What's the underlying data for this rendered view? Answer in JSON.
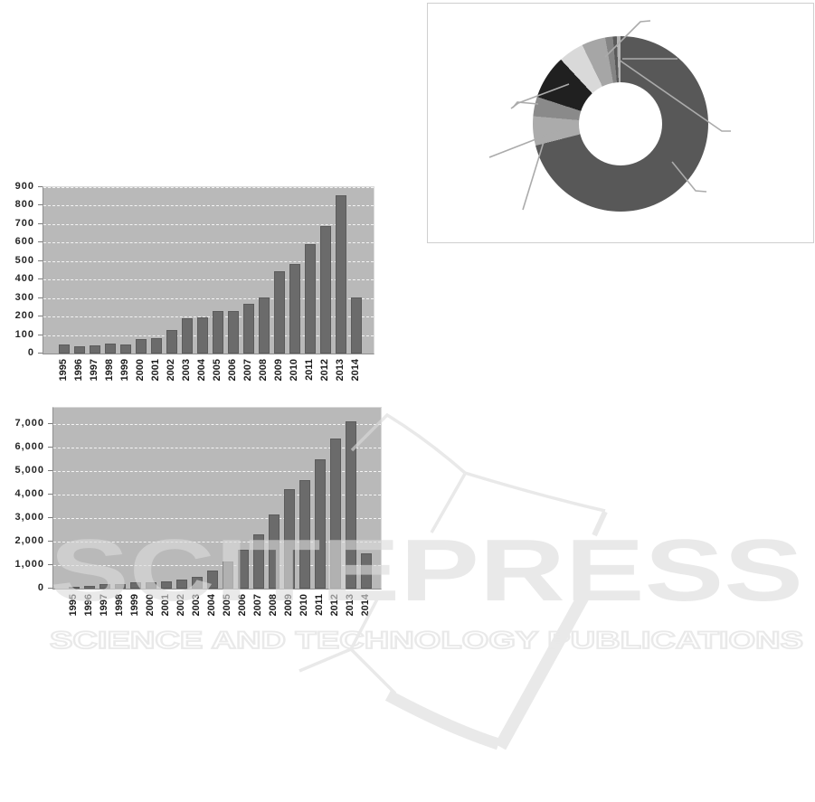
{
  "watermark": {
    "wordmark": "SCITEPRESS",
    "tagline": "SCIENCE AND TECHNOLOGY PUBLICATIONS"
  },
  "chart_data": [
    {
      "id": "chart-top",
      "type": "bar",
      "title": "",
      "xlabel": "",
      "ylabel": "",
      "categories": [
        "1995",
        "1996",
        "1997",
        "1998",
        "1999",
        "2000",
        "2001",
        "2002",
        "2003",
        "2004",
        "2005",
        "2006",
        "2007",
        "2008",
        "2009",
        "2010",
        "2011",
        "2012",
        "2013",
        "2014"
      ],
      "values": [
        50,
        40,
        45,
        55,
        48,
        80,
        85,
        125,
        190,
        195,
        230,
        230,
        270,
        305,
        445,
        485,
        590,
        690,
        855,
        305
      ],
      "ylim": [
        0,
        900
      ],
      "yticks": [
        "0",
        "100",
        "200",
        "300",
        "400",
        "500",
        "600",
        "700",
        "800",
        "900"
      ],
      "grid": true,
      "bar_color": "#6b6b6b",
      "plot_bg": "#b9b9b9"
    },
    {
      "id": "chart-bottom",
      "type": "bar",
      "title": "",
      "xlabel": "",
      "ylabel": "",
      "categories": [
        "1995",
        "1996",
        "1997",
        "1998",
        "1999",
        "2000",
        "2001",
        "2002",
        "2003",
        "2004",
        "2005",
        "2006",
        "2007",
        "2008",
        "2009",
        "2010",
        "2011",
        "2012",
        "2013",
        "2014"
      ],
      "values": [
        70,
        130,
        180,
        210,
        250,
        250,
        300,
        390,
        500,
        780,
        1150,
        1650,
        2300,
        3150,
        4250,
        4600,
        5500,
        6400,
        7100,
        1500
      ],
      "ylim": [
        0,
        7000
      ],
      "yticks": [
        "0",
        "1,000",
        "2,000",
        "3,000",
        "4,000",
        "5,000",
        "6,000",
        "7,000"
      ],
      "grid": true,
      "bar_color": "#6b6b6b",
      "plot_bg": "#b9b9b9"
    },
    {
      "id": "donut-chart",
      "type": "pie",
      "title": "",
      "donut": true,
      "legend": "none",
      "slices": [
        {
          "value": 71.0,
          "color": "#585858"
        },
        {
          "value": 5.4,
          "color": "#ababab"
        },
        {
          "value": 3.6,
          "color": "#8a8a8a"
        },
        {
          "value": 8.1,
          "color": "#202020"
        },
        {
          "value": 4.7,
          "color": "#d9d9d9"
        },
        {
          "value": 4.4,
          "color": "#a6a6a6"
        },
        {
          "value": 1.4,
          "color": "#848484"
        },
        {
          "value": 0.7,
          "color": "#5a5a5a"
        },
        {
          "value": 0.7,
          "color": "#b5b5b5"
        }
      ],
      "callout_color": "#ababab",
      "callout_lines": [
        [
          [
            196,
            59
          ],
          [
            235,
            20
          ],
          [
            246,
            19
          ]
        ],
        [
          [
            211,
            62
          ],
          [
            325,
            141
          ],
          [
            335,
            141
          ]
        ],
        [
          [
            215,
            61
          ],
          [
            276,
            61
          ]
        ],
        [
          [
            270,
            175
          ],
          [
            296,
            207
          ],
          [
            308,
            208
          ]
        ],
        [
          [
            145,
            140
          ],
          [
            68,
            170
          ]
        ],
        [
          [
            128,
            153
          ],
          [
            105,
            228
          ]
        ],
        [
          [
            156,
            89
          ],
          [
            100,
            110
          ],
          [
            92,
            116
          ]
        ],
        [
          [
            122,
            111
          ],
          [
            99,
            109
          ],
          [
            94,
            115
          ]
        ]
      ]
    }
  ]
}
